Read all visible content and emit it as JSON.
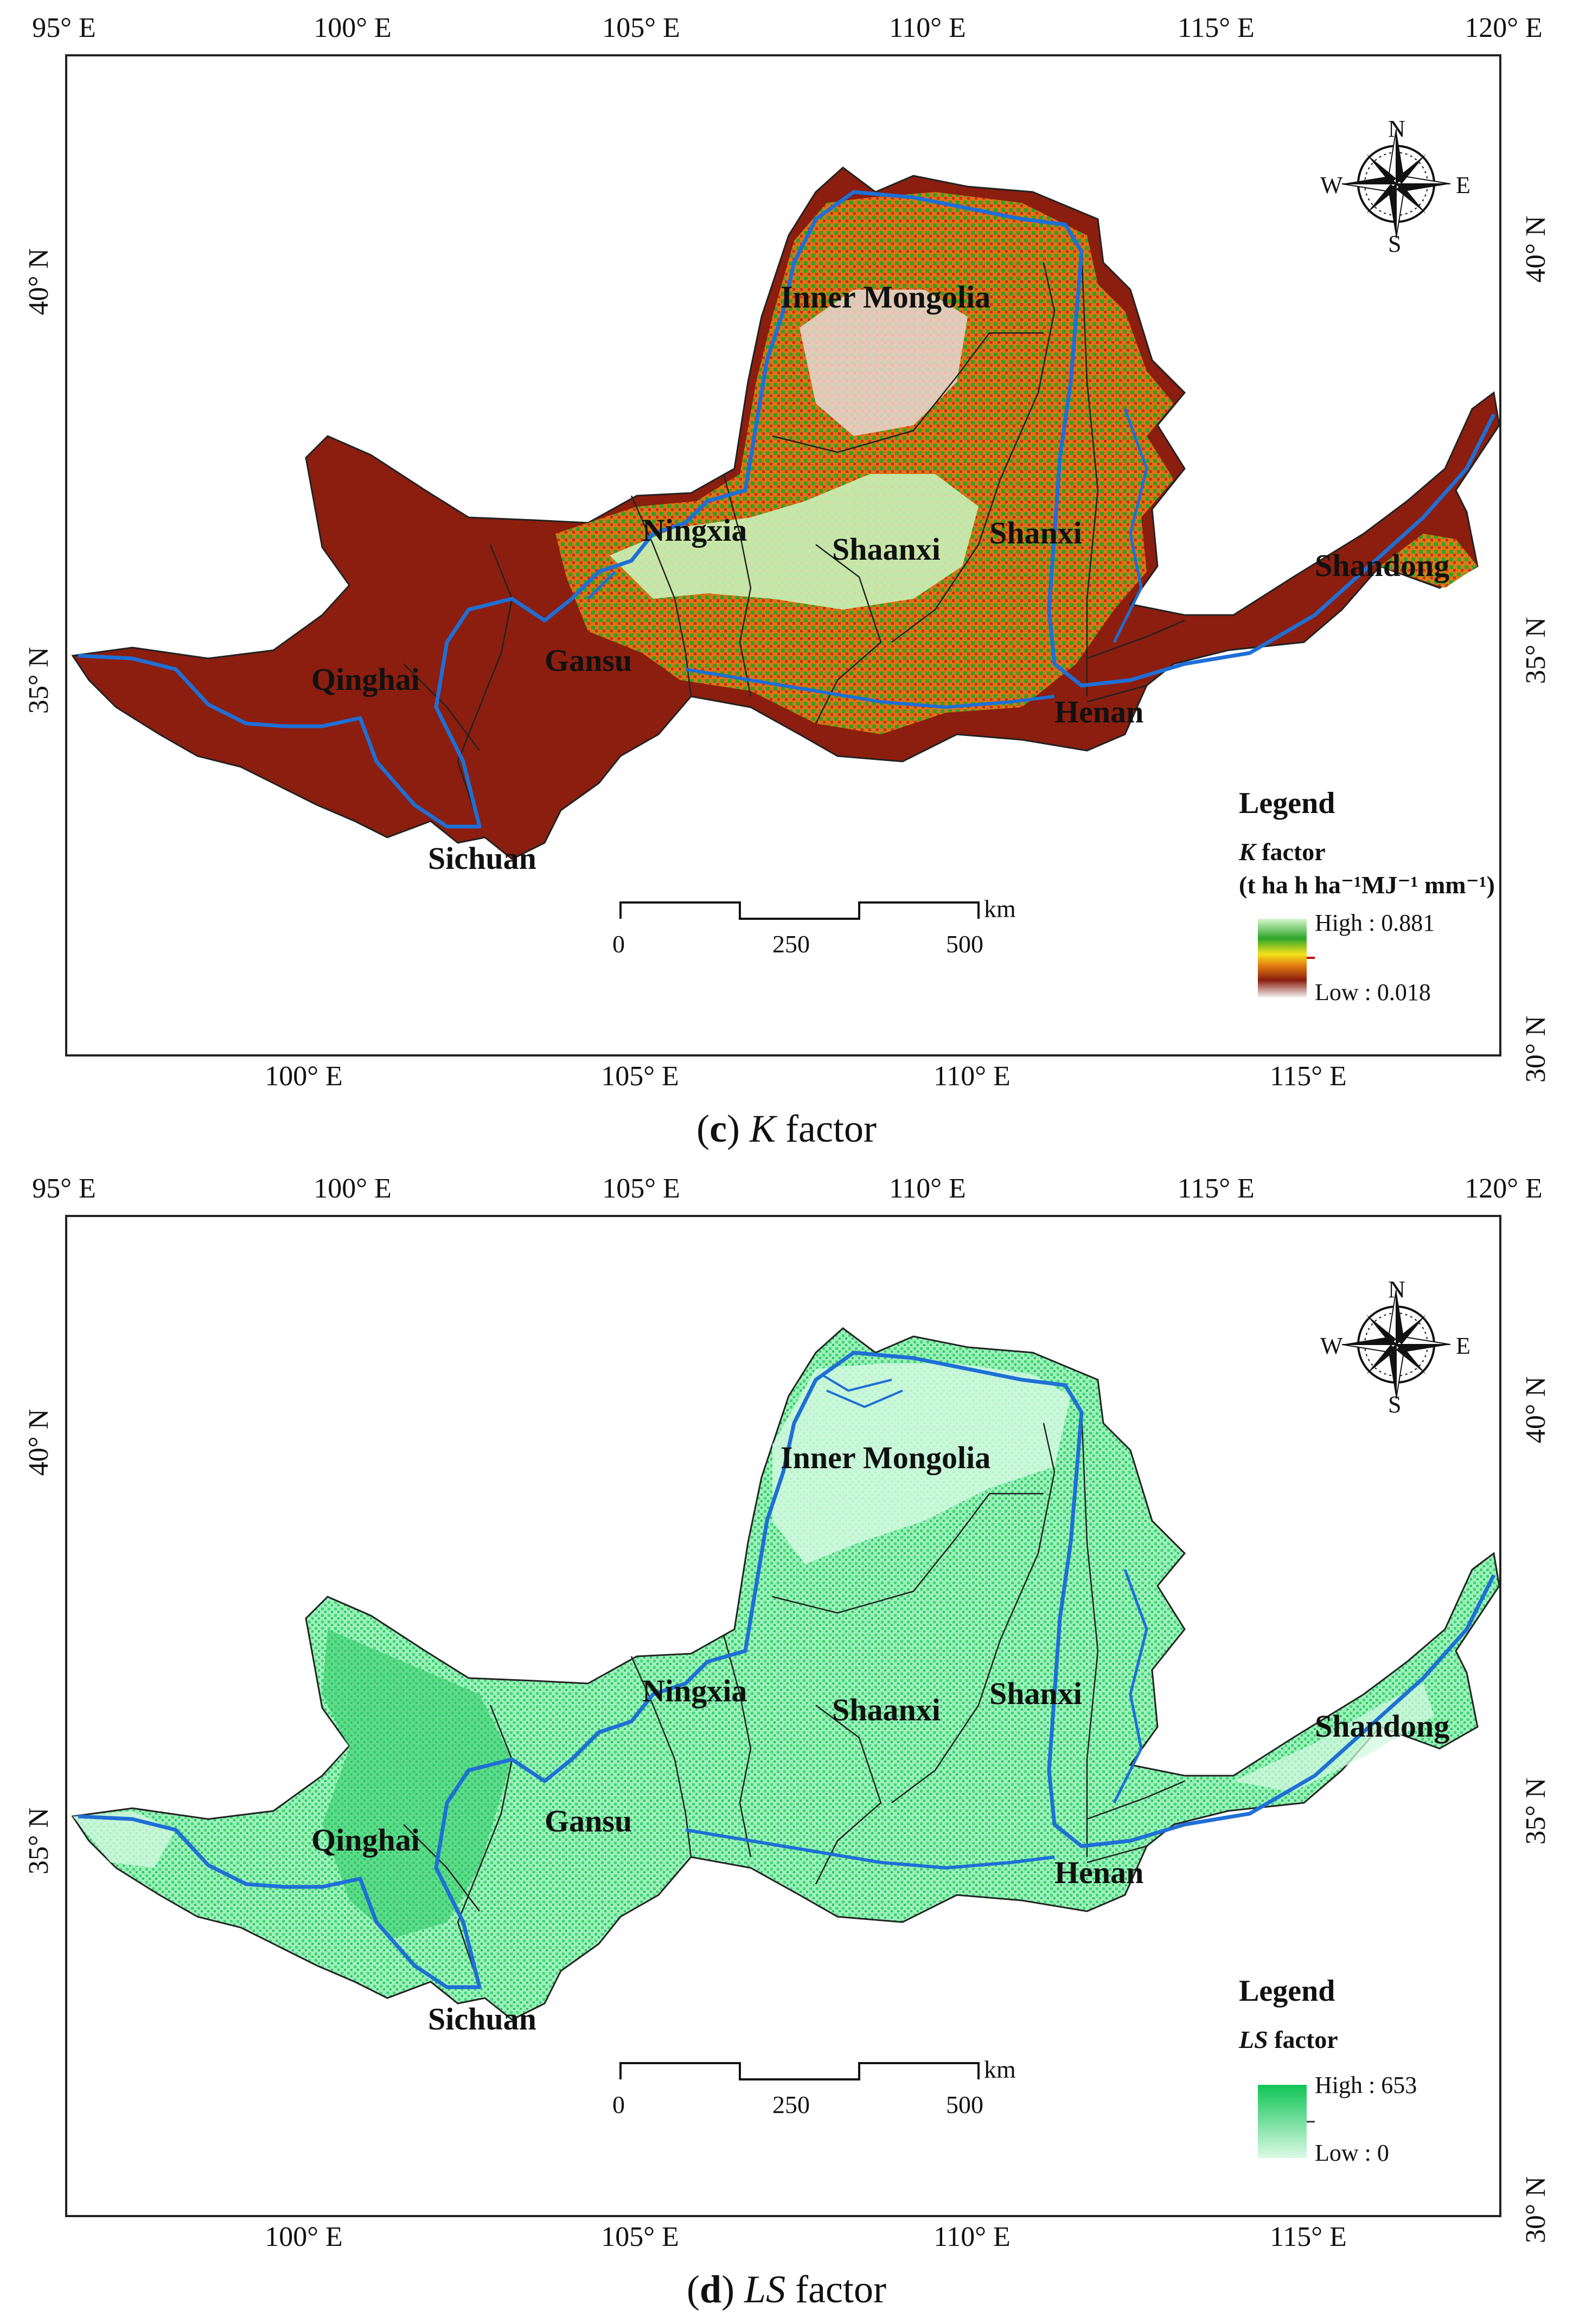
{
  "axes": {
    "top_ticks": [
      "95° E",
      "100° E",
      "105° E",
      "110° E",
      "115° E",
      "120° E"
    ],
    "bottom_ticks": [
      "100° E",
      "105° E",
      "110° E",
      "115° E"
    ],
    "left_ticks": [
      "40° N",
      "35° N"
    ],
    "right_ticks": [
      "40° N",
      "35° N",
      "30° N"
    ]
  },
  "regions": {
    "inner_mongolia": "Inner Mongolia",
    "ningxia": "Ningxia",
    "shaanxi": "Shaanxi",
    "shanxi": "Shanxi",
    "shandong": "Shandong",
    "gansu": "Gansu",
    "qinghai": "Qinghai",
    "henan": "Henan",
    "sichuan": "Sichuan"
  },
  "compass": {
    "n": "N",
    "s": "S",
    "e": "E",
    "w": "W"
  },
  "scalebar": {
    "unit": "km",
    "labels": [
      "0",
      "250",
      "500"
    ]
  },
  "panel_c": {
    "caption_letter": "c",
    "caption_var": "K",
    "caption_rest": " factor",
    "legend": {
      "title": "Legend",
      "var": "K",
      "label": " factor",
      "units": "(t ha h ha⁻¹MJ⁻¹ mm⁻¹)",
      "high": "High : 0.881",
      "low": "Low : 0.018",
      "high_value": 0.881,
      "low_value": 0.018
    },
    "colors": {
      "high": "#2fa52a",
      "mid": "#e07a12",
      "low": "#8b1e0e"
    }
  },
  "panel_d": {
    "caption_letter": "d",
    "caption_var": "LS",
    "caption_rest": " factor",
    "legend": {
      "title": "Legend",
      "var": "LS",
      "label": " factor",
      "high": "High : 653",
      "low": "Low : 0",
      "high_value": 653,
      "low_value": 0
    },
    "colors": {
      "high": "#10c455",
      "low": "#c9f7dc"
    }
  },
  "river_color": "#1e6fd6"
}
